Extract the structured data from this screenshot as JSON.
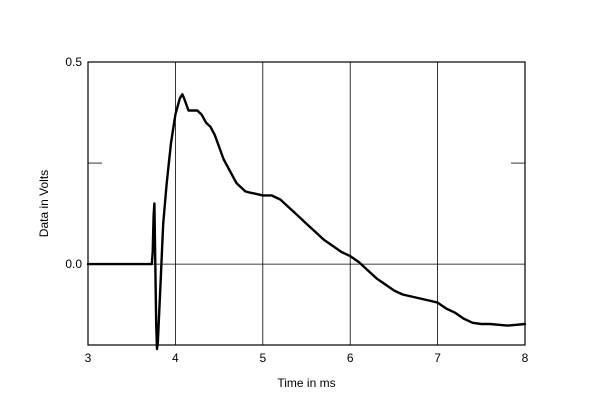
{
  "chart_data": {
    "type": "line",
    "title": "",
    "xlabel": "Time in ms",
    "ylabel": "Data in Volts",
    "xlim": [
      3,
      8
    ],
    "ylim": [
      -0.2,
      0.5
    ],
    "x_ticks": [
      3,
      4,
      5,
      6,
      7,
      8
    ],
    "x_tick_labels": [
      "3",
      "4",
      "5",
      "6",
      "7",
      "8"
    ],
    "y_ticks": [
      0.0,
      0.5
    ],
    "y_tick_labels": [
      "0.0",
      "0.5"
    ],
    "grid": true,
    "colors": {
      "line": "#000000",
      "grid": "#000000",
      "background": "#ffffff"
    },
    "series": [
      {
        "x": [
          3.0,
          3.5,
          3.73,
          3.74,
          3.75,
          3.76,
          3.77,
          3.78,
          3.79,
          3.8,
          3.83,
          3.86,
          3.9,
          3.95,
          4.0,
          4.05,
          4.08,
          4.1,
          4.15,
          4.2,
          4.25,
          4.3,
          4.35,
          4.4,
          4.45,
          4.5,
          4.55,
          4.6,
          4.65,
          4.7,
          4.75,
          4.8,
          4.85,
          4.9,
          5.0,
          5.1,
          5.2,
          5.3,
          5.4,
          5.5,
          5.6,
          5.7,
          5.8,
          5.9,
          6.0,
          6.1,
          6.2,
          6.3,
          6.4,
          6.5,
          6.6,
          6.7,
          6.8,
          6.9,
          7.0,
          7.1,
          7.2,
          7.3,
          7.4,
          7.5,
          7.6,
          7.7,
          7.8,
          7.9,
          8.0
        ],
        "y": [
          0.0,
          0.0,
          0.0,
          0.03,
          0.12,
          0.15,
          0.0,
          -0.15,
          -0.21,
          -0.19,
          -0.05,
          0.1,
          0.2,
          0.3,
          0.37,
          0.41,
          0.42,
          0.41,
          0.38,
          0.38,
          0.38,
          0.37,
          0.35,
          0.34,
          0.32,
          0.29,
          0.26,
          0.24,
          0.22,
          0.2,
          0.19,
          0.18,
          0.177,
          0.175,
          0.17,
          0.17,
          0.16,
          0.14,
          0.12,
          0.1,
          0.08,
          0.06,
          0.045,
          0.03,
          0.02,
          0.005,
          -0.015,
          -0.035,
          -0.05,
          -0.065,
          -0.075,
          -0.08,
          -0.085,
          -0.09,
          -0.095,
          -0.11,
          -0.12,
          -0.135,
          -0.145,
          -0.148,
          -0.148,
          -0.15,
          -0.152,
          -0.15,
          -0.148
        ]
      }
    ]
  }
}
